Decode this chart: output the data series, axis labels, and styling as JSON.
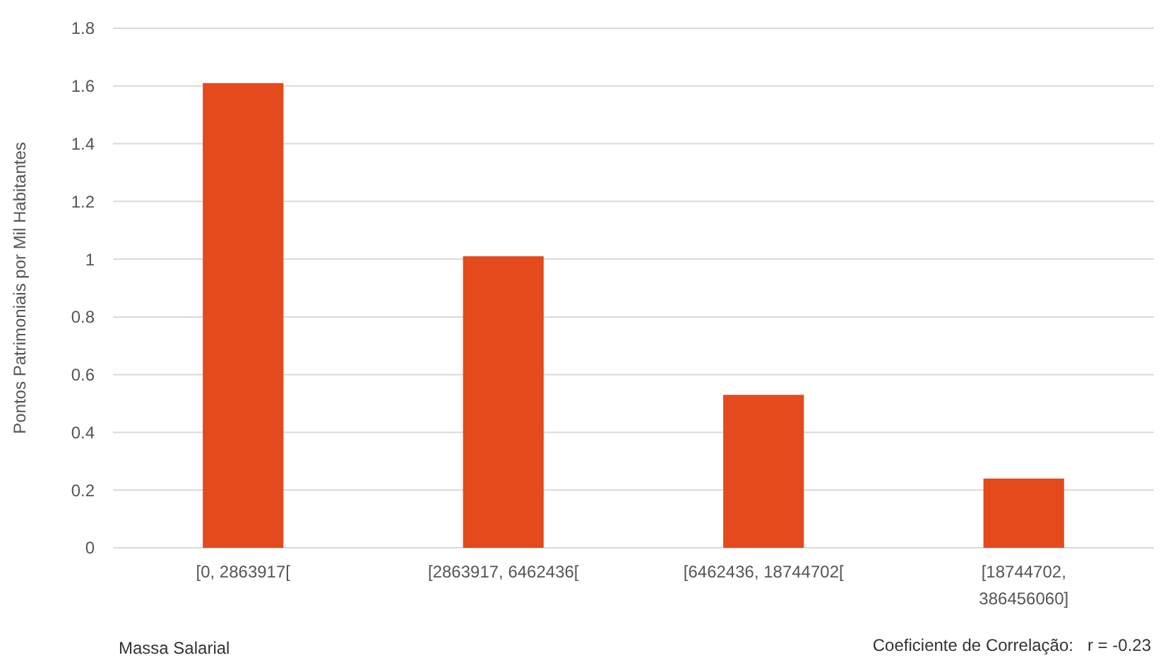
{
  "chart_data": {
    "type": "bar",
    "xlabel": "Massa Salarial",
    "ylabel": "Pontos Patrimoniais por Mil Habitantes",
    "categories": [
      "[0, 2863917[",
      "[2863917, 6462436[",
      "[6462436, 18744702[",
      "[18744702, 386456060]"
    ],
    "values": [
      1.61,
      1.01,
      0.53,
      0.24
    ],
    "color": "#e44a1c",
    "ylim": [
      0,
      1.8
    ],
    "yticks": [
      0,
      {
        "value": 0.2,
        "label": "0.2"
      },
      {
        "value": 0.4,
        "label": "0.4"
      },
      {
        "value": 0.6,
        "label": "0.6"
      },
      {
        "value": 0.8,
        "label": "0.8"
      },
      1,
      {
        "value": 1.2,
        "label": "1.2"
      },
      {
        "value": 1.4,
        "label": "1.4"
      },
      {
        "value": 1.6,
        "label": "1.6"
      },
      {
        "value": 1.8,
        "label": "1.8"
      }
    ],
    "grid": "y",
    "annotations": [
      "Coeficiente de Correlação:   r = -0.23"
    ]
  }
}
